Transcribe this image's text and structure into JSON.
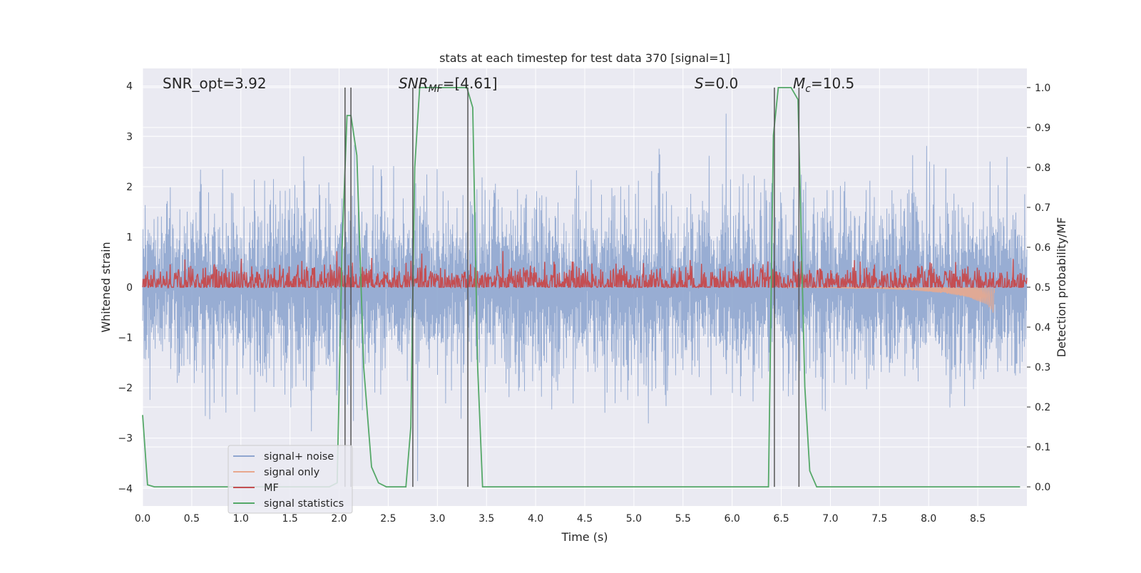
{
  "chart_data": {
    "type": "line",
    "title": "stats at each timestep for test data 370 [signal=1]",
    "xlabel": "Time (s)",
    "ylabel_left": "Whitened strain",
    "ylabel_right": "Detection probability/MF",
    "xlim": [
      0.0,
      9.0
    ],
    "ylim_left": [
      -4.35,
      4.35
    ],
    "ylim_right": [
      -0.048,
      1.048
    ],
    "grid": true,
    "legend_position": "lower-left",
    "x_ticks": [
      "0.0",
      "0.5",
      "1.0",
      "1.5",
      "2.0",
      "2.5",
      "3.0",
      "3.5",
      "4.0",
      "4.5",
      "5.0",
      "5.5",
      "6.0",
      "6.5",
      "7.0",
      "7.5",
      "8.0",
      "8.5"
    ],
    "y_ticks_left": [
      "−4",
      "−3",
      "−2",
      "−1",
      "0",
      "1",
      "2",
      "3",
      "4"
    ],
    "y_ticks_right": [
      "0.0",
      "0.1",
      "0.2",
      "0.3",
      "0.4",
      "0.5",
      "0.6",
      "0.7",
      "0.8",
      "0.9",
      "1.0"
    ],
    "annotations": {
      "snr_opt": "SNR_opt=3.92",
      "snr_mf_main": "SNR",
      "snr_mf_sub": "MF",
      "snr_mf_rest": "=[4.61]",
      "s_main": "S",
      "s_rest": "=0.0",
      "mc_main": "M",
      "mc_sub": "c",
      "mc_rest": "=10.5"
    },
    "vlines": [
      2.06,
      2.12,
      2.75,
      3.31,
      6.43,
      6.68
    ],
    "series": [
      {
        "name": "signal+ noise",
        "color": "#8fa6cf",
        "axis": "left",
        "noise_sigma": 0.82,
        "x_range": [
          0.0,
          9.0
        ]
      },
      {
        "name": "signal only",
        "color": "#e8a88e",
        "axis": "left",
        "description_points": {
          "x": [
            6.5,
            7.0,
            7.5,
            7.8,
            8.0,
            8.2,
            8.4,
            8.6,
            8.67
          ],
          "envelope": [
            0.0,
            0.01,
            0.03,
            0.06,
            0.09,
            0.13,
            0.2,
            0.35,
            0.55
          ]
        }
      },
      {
        "name": "MF",
        "color": "#c44e52",
        "axis": "right",
        "baseline": 0.5,
        "spread": 0.05,
        "x_range": [
          0.0,
          9.0
        ]
      },
      {
        "name": "signal statistics",
        "color": "#55a868",
        "axis": "right",
        "x": [
          0.0,
          0.05,
          0.12,
          1.9,
          1.98,
          2.03,
          2.08,
          2.12,
          2.18,
          2.25,
          2.33,
          2.4,
          2.48,
          2.68,
          2.73,
          2.77,
          2.82,
          3.3,
          3.36,
          3.41,
          3.46,
          6.37,
          6.42,
          6.47,
          6.53,
          6.6,
          6.67,
          6.74,
          6.79,
          6.86,
          8.93
        ],
        "y": [
          0.18,
          0.005,
          0.0,
          0.0,
          0.01,
          0.6,
          0.93,
          0.93,
          0.83,
          0.3,
          0.05,
          0.01,
          0.0,
          0.0,
          0.15,
          0.8,
          1.0,
          1.0,
          0.95,
          0.3,
          0.0,
          0.0,
          0.88,
          1.0,
          1.0,
          1.0,
          0.97,
          0.25,
          0.04,
          0.0,
          0.0
        ]
      }
    ]
  }
}
